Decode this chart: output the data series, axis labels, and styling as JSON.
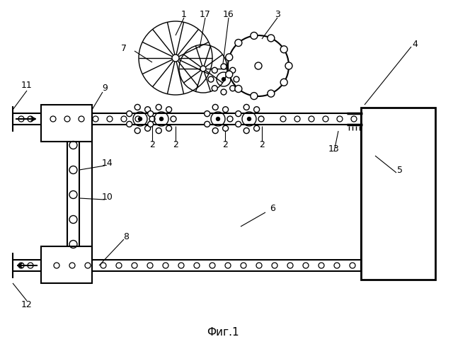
{
  "title": "Фиг.1",
  "bg_color": "#ffffff",
  "line_color": "#000000",
  "fig_width": 6.4,
  "fig_height": 4.93,
  "dpi": 100
}
